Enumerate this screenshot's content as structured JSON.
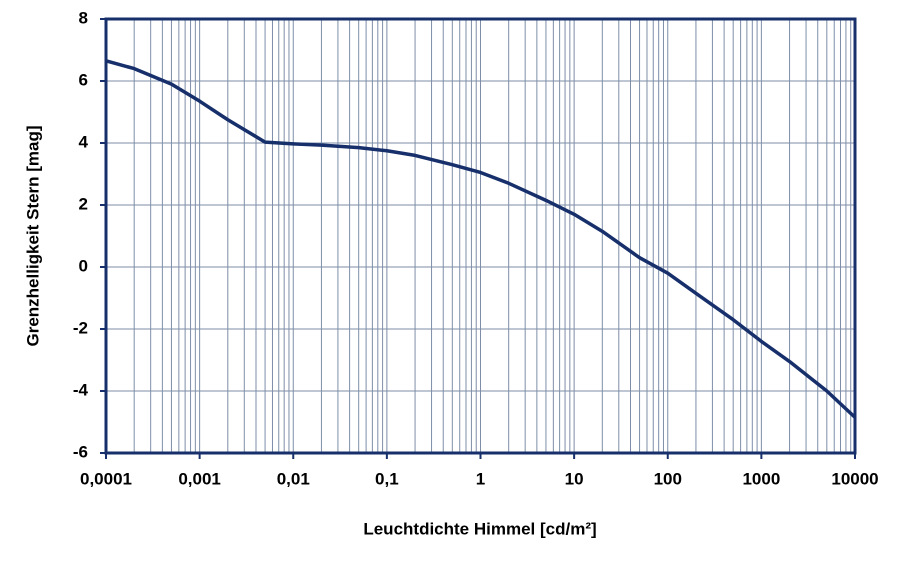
{
  "chart_data": {
    "type": "line",
    "xlabel": "Leuchtdichte Himmel [cd/m²]",
    "ylabel": "Grenzhelligkeit Stern  [mag]",
    "x": [
      0.0001,
      0.0002,
      0.0005,
      0.001,
      0.002,
      0.005,
      0.01,
      0.02,
      0.05,
      0.1,
      0.2,
      0.5,
      1,
      2,
      5,
      10,
      20,
      50,
      100,
      200,
      500,
      1000,
      2000,
      5000,
      10000
    ],
    "values": [
      6.65,
      6.4,
      5.9,
      5.35,
      4.75,
      4.03,
      3.97,
      3.93,
      3.85,
      3.75,
      3.6,
      3.3,
      3.05,
      2.7,
      2.15,
      1.7,
      1.15,
      0.3,
      -0.2,
      -0.85,
      -1.7,
      -2.4,
      -3.05,
      -4.0,
      -4.85
    ],
    "color": "#17306b",
    "xscale": "log",
    "xlim": [
      0.0001,
      10000
    ],
    "xticks": [
      {
        "value": 0.0001,
        "label": "0,0001"
      },
      {
        "value": 0.001,
        "label": "0,001"
      },
      {
        "value": 0.01,
        "label": "0,01"
      },
      {
        "value": 0.1,
        "label": "0,1"
      },
      1,
      10,
      100,
      1000,
      10000
    ],
    "xminorticks": [
      0.0002,
      0.0003,
      0.0004,
      0.0005,
      0.0006,
      0.0007,
      0.0008,
      0.0009,
      0.002,
      0.003,
      0.004,
      0.005,
      0.006,
      0.007,
      0.008,
      0.009,
      0.02,
      0.03,
      0.04,
      0.05,
      0.06,
      0.07,
      0.08,
      0.09,
      0.2,
      0.3,
      0.4,
      0.5,
      0.6,
      0.7,
      0.8,
      0.9,
      2,
      3,
      4,
      5,
      6,
      7,
      8,
      9,
      20,
      30,
      40,
      50,
      60,
      70,
      80,
      90,
      200,
      300,
      400,
      500,
      600,
      700,
      800,
      900,
      2000,
      3000,
      4000,
      5000,
      6000,
      7000,
      8000,
      9000
    ],
    "ylim": [
      -6,
      8
    ],
    "yticks": [
      -6,
      -4,
      -2,
      0,
      2,
      4,
      6,
      8
    ],
    "grid": true
  }
}
